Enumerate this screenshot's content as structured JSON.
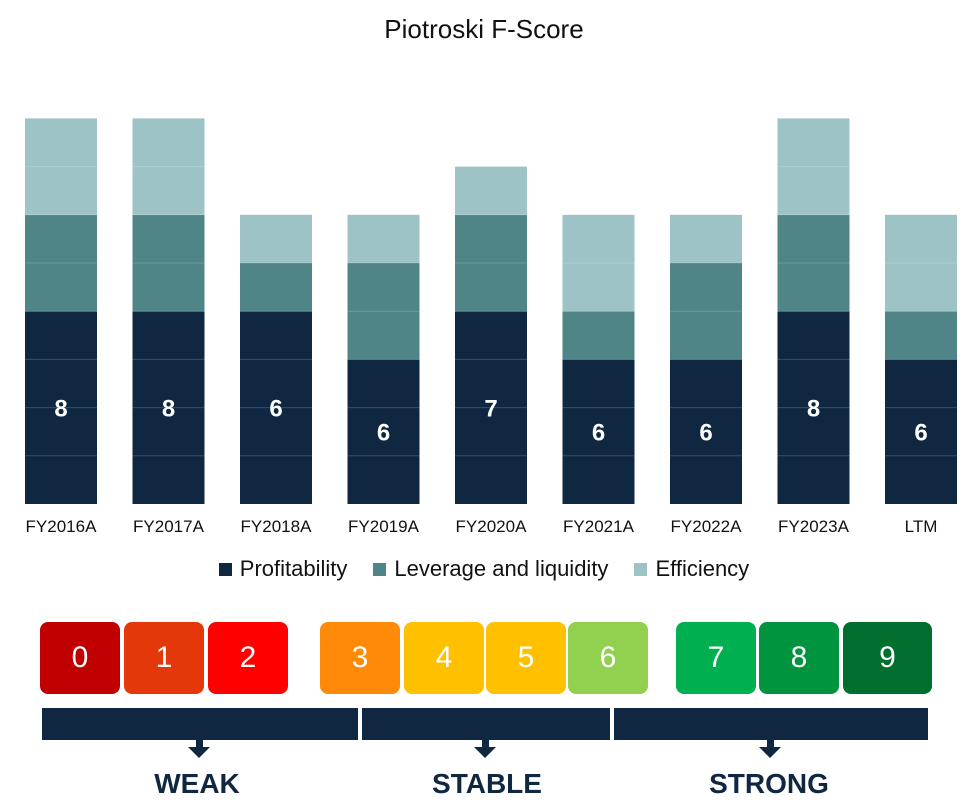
{
  "chart_data": {
    "type": "bar",
    "title": "Piotroski F-Score",
    "categories": [
      "FY2016A",
      "FY2017A",
      "FY2018A",
      "FY2019A",
      "FY2020A",
      "FY2021A",
      "FY2022A",
      "FY2023A",
      "LTM"
    ],
    "series": [
      {
        "name": "Profitability",
        "values": [
          4,
          4,
          4,
          3,
          4,
          3,
          3,
          4,
          3
        ],
        "color": "#0f2741"
      },
      {
        "name": "Leverage and liquidity",
        "values": [
          2,
          2,
          1,
          2,
          2,
          1,
          2,
          2,
          1
        ],
        "color": "#4f8587"
      },
      {
        "name": "Efficiency",
        "values": [
          2,
          2,
          1,
          1,
          1,
          2,
          1,
          2,
          2
        ],
        "color": "#9dc3c6"
      }
    ],
    "totals": [
      "8",
      "8",
      "6",
      "6",
      "7",
      "6",
      "6",
      "8",
      "6"
    ],
    "ylim": [
      0,
      9
    ],
    "stacked": true,
    "grid": false,
    "legend_position": "bottom"
  },
  "score_scale": {
    "scores": [
      {
        "label": "0",
        "color": "#c00000"
      },
      {
        "label": "1",
        "color": "#e4380b"
      },
      {
        "label": "2",
        "color": "#ff0000"
      },
      {
        "label": "3",
        "color": "#ff8a0a"
      },
      {
        "label": "4",
        "color": "#ffc000"
      },
      {
        "label": "5",
        "color": "#ffc000"
      },
      {
        "label": "6",
        "color": "#92d050"
      },
      {
        "label": "7",
        "color": "#00b050"
      },
      {
        "label": "8",
        "color": "#00943f"
      },
      {
        "label": "9",
        "color": "#006f2e"
      }
    ],
    "bands": [
      {
        "label": "WEAK"
      },
      {
        "label": "STABLE"
      },
      {
        "label": "STRONG"
      }
    ]
  }
}
